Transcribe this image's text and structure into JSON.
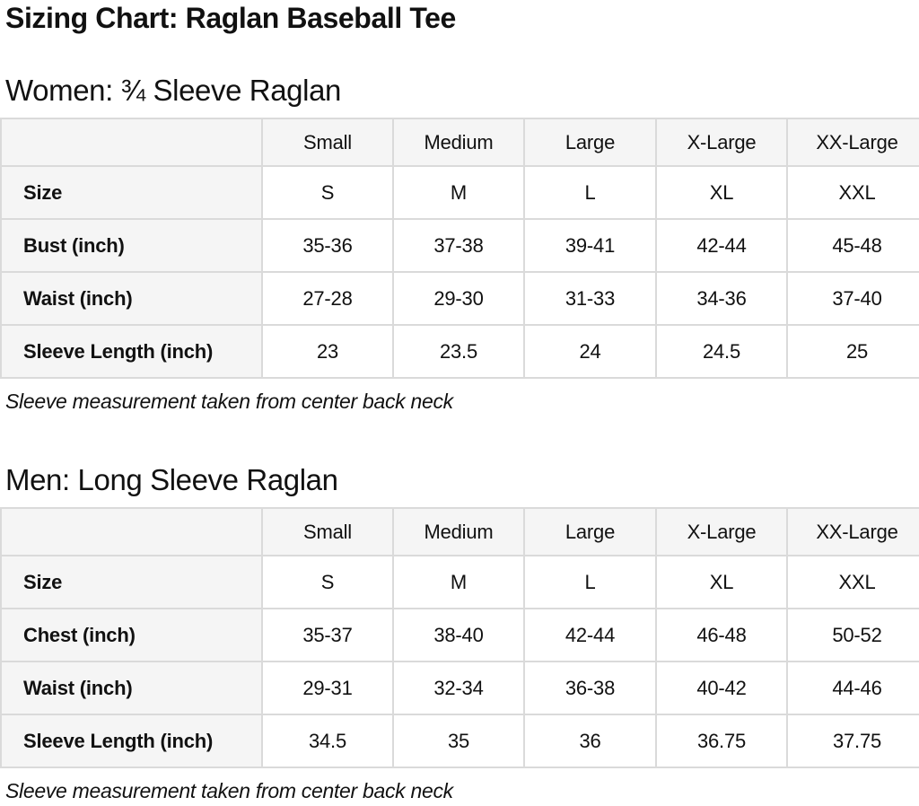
{
  "page": {
    "title": "Sizing Chart: Raglan Baseball Tee"
  },
  "colors": {
    "background": "#ffffff",
    "text": "#111111",
    "table_header_bg": "#f5f5f5",
    "table_border": "#dadada"
  },
  "tables": [
    {
      "heading": "Women: ¾ Sleeve Raglan",
      "columns": [
        "",
        "Small",
        "Medium",
        "Large",
        "X-Large",
        "XX-Large"
      ],
      "rows": [
        {
          "label": "Size",
          "values": [
            "S",
            "M",
            "L",
            "XL",
            "XXL"
          ]
        },
        {
          "label": "Bust (inch)",
          "values": [
            "35-36",
            "37-38",
            "39-41",
            "42-44",
            "45-48"
          ]
        },
        {
          "label": "Waist (inch)",
          "values": [
            "27-28",
            "29-30",
            "31-33",
            "34-36",
            "37-40"
          ]
        },
        {
          "label": "Sleeve Length (inch)",
          "values": [
            "23",
            "23.5",
            "24",
            "24.5",
            "25"
          ]
        }
      ],
      "note": "Sleeve measurement taken from center back neck"
    },
    {
      "heading": "Men: Long Sleeve Raglan",
      "columns": [
        "",
        "Small",
        "Medium",
        "Large",
        "X-Large",
        "XX-Large"
      ],
      "rows": [
        {
          "label": "Size",
          "values": [
            "S",
            "M",
            "L",
            "XL",
            "XXL"
          ]
        },
        {
          "label": "Chest (inch)",
          "values": [
            "35-37",
            "38-40",
            "42-44",
            "46-48",
            "50-52"
          ]
        },
        {
          "label": "Waist (inch)",
          "values": [
            "29-31",
            "32-34",
            "36-38",
            "40-42",
            "44-46"
          ]
        },
        {
          "label": "Sleeve Length (inch)",
          "values": [
            "34.5",
            "35",
            "36",
            "36.75",
            "37.75"
          ]
        }
      ],
      "note": "Sleeve measurement taken from center back neck"
    }
  ]
}
